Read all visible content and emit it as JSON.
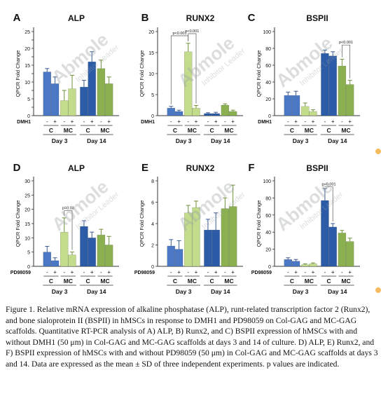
{
  "figure": {
    "watermark": {
      "brand": "Abmole",
      "tagline": "Inhibitor Leader",
      "color": "#9aa0a6"
    },
    "colors": {
      "day3_C": "#4a78c4",
      "day3_MC": "#c2dc8c",
      "day14_C": "#2c5ca8",
      "day14_MC": "#8ab050",
      "error_C": "#3a5a90",
      "error_MC": "#6f8f3a"
    },
    "ylabel": "QPCR Fold Change",
    "group_labels": {
      "control": "C",
      "mc": "MC"
    },
    "day_labels": [
      "Day 3",
      "Day 14"
    ],
    "treatment_signs": [
      "-",
      "+",
      "-",
      "+"
    ]
  },
  "chart_data": [
    {
      "panel": "A",
      "title": "ALP",
      "type": "bar",
      "treatment": "DMH1",
      "ylim": [
        0,
        25
      ],
      "yticks": [
        0,
        2.5,
        5,
        7.5,
        10,
        12.5,
        15,
        17.5,
        20,
        22.5,
        25
      ],
      "ytick_labels": [
        "0",
        "",
        "5",
        "",
        "10",
        "",
        "15",
        "",
        "20",
        "",
        "25"
      ],
      "bars": [
        {
          "day": "Day 3",
          "group": "C",
          "treatment": "-",
          "value": 13,
          "err": 1.0
        },
        {
          "day": "Day 3",
          "group": "C",
          "treatment": "+",
          "value": 9.5,
          "err": 2.0
        },
        {
          "day": "Day 3",
          "group": "MC",
          "treatment": "-",
          "value": 4.5,
          "err": 3.0
        },
        {
          "day": "Day 3",
          "group": "MC",
          "treatment": "+",
          "value": 8,
          "err": 4.0
        },
        {
          "day": "Day 14",
          "group": "C",
          "treatment": "-",
          "value": 8.5,
          "err": 2.0
        },
        {
          "day": "Day 14",
          "group": "C",
          "treatment": "+",
          "value": 16,
          "err": 3.0
        },
        {
          "day": "Day 14",
          "group": "MC",
          "treatment": "-",
          "value": 14,
          "err": 2.5
        },
        {
          "day": "Day 14",
          "group": "MC",
          "treatment": "+",
          "value": 9.5,
          "err": 2.0
        }
      ],
      "annotations": []
    },
    {
      "panel": "B",
      "title": "RUNX2",
      "type": "bar",
      "treatment": "DMH1",
      "ylim": [
        0,
        20
      ],
      "yticks": [
        0,
        5,
        10,
        15,
        20
      ],
      "ytick_labels": [
        "0",
        "5",
        "10",
        "15",
        "20"
      ],
      "bars": [
        {
          "day": "Day 3",
          "group": "C",
          "treatment": "-",
          "value": 1.8,
          "err": 0.4
        },
        {
          "day": "Day 3",
          "group": "C",
          "treatment": "+",
          "value": 1.0,
          "err": 0.3
        },
        {
          "day": "Day 3",
          "group": "MC",
          "treatment": "-",
          "value": 15.2,
          "err": 2.0
        },
        {
          "day": "Day 3",
          "group": "MC",
          "treatment": "+",
          "value": 1.8,
          "err": 0.6
        },
        {
          "day": "Day 14",
          "group": "C",
          "treatment": "-",
          "value": 0.5,
          "err": 0.2
        },
        {
          "day": "Day 14",
          "group": "C",
          "treatment": "+",
          "value": 0.5,
          "err": 0.3
        },
        {
          "day": "Day 14",
          "group": "MC",
          "treatment": "-",
          "value": 2.5,
          "err": 0.3
        },
        {
          "day": "Day 14",
          "group": "MC",
          "treatment": "+",
          "value": 1.0,
          "err": 0.3
        }
      ],
      "annotations": [
        {
          "label": "p<0.001",
          "from": 0,
          "to": 2,
          "y": 19.0
        },
        {
          "label": "p<0.001",
          "from": 2,
          "to": 3,
          "y": 19.5
        }
      ]
    },
    {
      "panel": "C",
      "title": "BSPII",
      "type": "bar",
      "treatment": "DMH1",
      "ylim": [
        0,
        100
      ],
      "yticks": [
        0,
        20,
        40,
        60,
        80,
        100
      ],
      "ytick_labels": [
        "0",
        "20",
        "40",
        "60",
        "80",
        "100"
      ],
      "bars": [
        {
          "day": "Day 3",
          "group": "C",
          "treatment": "-",
          "value": 24,
          "err": 4
        },
        {
          "day": "Day 3",
          "group": "C",
          "treatment": "+",
          "value": 24,
          "err": 5
        },
        {
          "day": "Day 3",
          "group": "MC",
          "treatment": "-",
          "value": 11,
          "err": 4
        },
        {
          "day": "Day 3",
          "group": "MC",
          "treatment": "+",
          "value": 5,
          "err": 2
        },
        {
          "day": "Day 14",
          "group": "C",
          "treatment": "-",
          "value": 74,
          "err": 4
        },
        {
          "day": "Day 14",
          "group": "C",
          "treatment": "+",
          "value": 71,
          "err": 5
        },
        {
          "day": "Day 14",
          "group": "MC",
          "treatment": "-",
          "value": 59,
          "err": 8
        },
        {
          "day": "Day 14",
          "group": "MC",
          "treatment": "+",
          "value": 37,
          "err": 5
        }
      ],
      "annotations": [
        {
          "label": "p<0.001",
          "from": 6,
          "to": 7,
          "y": 84
        }
      ]
    },
    {
      "panel": "D",
      "title": "ALP",
      "type": "bar",
      "treatment": "PD98059",
      "ylim": [
        0,
        30
      ],
      "yticks": [
        0,
        5,
        10,
        15,
        20,
        25,
        30
      ],
      "ytick_labels": [
        "0",
        "5",
        "10",
        "15",
        "20",
        "25",
        "30"
      ],
      "bars": [
        {
          "day": "Day 3",
          "group": "C",
          "treatment": "-",
          "value": 5,
          "err": 2.0
        },
        {
          "day": "Day 3",
          "group": "C",
          "treatment": "+",
          "value": 2,
          "err": 1.0
        },
        {
          "day": "Day 3",
          "group": "MC",
          "treatment": "-",
          "value": 12,
          "err": 5.0
        },
        {
          "day": "Day 3",
          "group": "MC",
          "treatment": "+",
          "value": 4,
          "err": 1.0
        },
        {
          "day": "Day 14",
          "group": "C",
          "treatment": "-",
          "value": 14,
          "err": 2.0
        },
        {
          "day": "Day 14",
          "group": "C",
          "treatment": "+",
          "value": 10,
          "err": 2.0
        },
        {
          "day": "Day 14",
          "group": "MC",
          "treatment": "-",
          "value": 11,
          "err": 2.0
        },
        {
          "day": "Day 14",
          "group": "MC",
          "treatment": "+",
          "value": 7.5,
          "err": 3.0
        }
      ],
      "annotations": [
        {
          "label": "p=0.03",
          "from": 2,
          "to": 3,
          "y": 19.5
        }
      ]
    },
    {
      "panel": "E",
      "title": "RUNX2",
      "type": "bar",
      "treatment": "PD98059",
      "ylim": [
        0,
        8
      ],
      "yticks": [
        0,
        2,
        4,
        6,
        8
      ],
      "ytick_labels": [
        "0",
        "2",
        "4",
        "6",
        "8"
      ],
      "bars": [
        {
          "day": "Day 3",
          "group": "C",
          "treatment": "-",
          "value": 1.9,
          "err": 0.6
        },
        {
          "day": "Day 3",
          "group": "C",
          "treatment": "+",
          "value": 1.6,
          "err": 0.8
        },
        {
          "day": "Day 3",
          "group": "MC",
          "treatment": "-",
          "value": 5.0,
          "err": 0.7
        },
        {
          "day": "Day 3",
          "group": "MC",
          "treatment": "+",
          "value": 5.5,
          "err": 0.6
        },
        {
          "day": "Day 14",
          "group": "C",
          "treatment": "-",
          "value": 3.4,
          "err": 1.0
        },
        {
          "day": "Day 14",
          "group": "C",
          "treatment": "+",
          "value": 3.4,
          "err": 1.6
        },
        {
          "day": "Day 14",
          "group": "MC",
          "treatment": "-",
          "value": 5.4,
          "err": 1.0
        },
        {
          "day": "Day 14",
          "group": "MC",
          "treatment": "+",
          "value": 5.6,
          "err": 2.0
        }
      ],
      "annotations": []
    },
    {
      "panel": "F",
      "title": "BSPII",
      "type": "bar",
      "treatment": "PD98059",
      "ylim": [
        0,
        100
      ],
      "yticks": [
        0,
        20,
        40,
        60,
        80,
        100
      ],
      "ytick_labels": [
        "0",
        "20",
        "40",
        "60",
        "80",
        "100"
      ],
      "bars": [
        {
          "day": "Day 3",
          "group": "C",
          "treatment": "-",
          "value": 8,
          "err": 2
        },
        {
          "day": "Day 3",
          "group": "C",
          "treatment": "+",
          "value": 6,
          "err": 2
        },
        {
          "day": "Day 3",
          "group": "MC",
          "treatment": "-",
          "value": 2,
          "err": 1
        },
        {
          "day": "Day 3",
          "group": "MC",
          "treatment": "+",
          "value": 3,
          "err": 1
        },
        {
          "day": "Day 14",
          "group": "C",
          "treatment": "-",
          "value": 77,
          "err": 14
        },
        {
          "day": "Day 14",
          "group": "C",
          "treatment": "+",
          "value": 46,
          "err": 4
        },
        {
          "day": "Day 14",
          "group": "MC",
          "treatment": "-",
          "value": 39,
          "err": 3
        },
        {
          "day": "Day 14",
          "group": "MC",
          "treatment": "+",
          "value": 29,
          "err": 4
        }
      ],
      "annotations": [
        {
          "label": "p<0.001",
          "from": 4,
          "to": 5,
          "y": 93
        }
      ]
    }
  ],
  "caption": "Figure 1. Relative mRNA expression of alkaline phosphatase (ALP), runt-related transcription factor 2 (Runx2), and bone sialoprotein II (BSPII) in hMSCs in response to DMH1 and PD98059 on Col-GAG and MC-GAG scaffolds. Quantitative RT-PCR analysis of A) ALP, B) Runx2, and C) BSPII expression of hMSCs with and without DMH1 (50 μm) in Col-GAG and MC-GAG scaffolds at days 3 and 14 of culture. D) ALP, E) Runx2, and F) BSPII expression of hMSCs with and without PD98059 (50 μm) in Col-GAG and MC-GAG scaffolds at days 3 and 14. Data are expressed as the mean ± SD of three independent experiments. p values are indicated."
}
